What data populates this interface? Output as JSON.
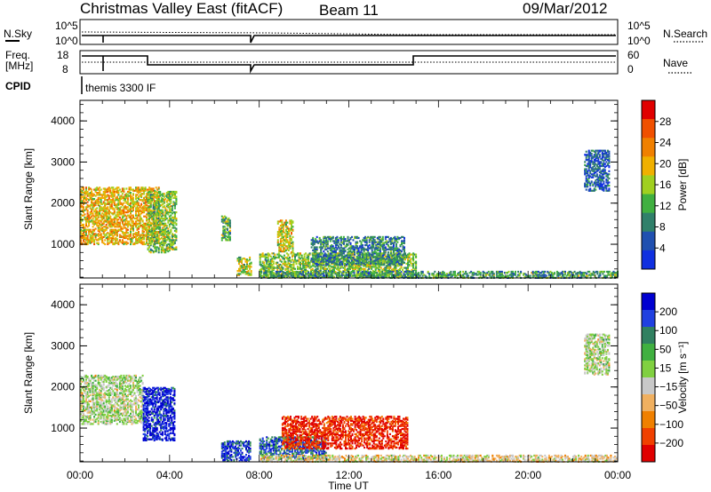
{
  "header": {
    "station": "Christmas Valley East (fitACF)",
    "beam": "Beam 11",
    "date": "09/Mar/2012"
  },
  "summary": {
    "nsky_label": "N.Sky",
    "nsky_ticks": [
      "10^5",
      "10^0"
    ],
    "nsearch_label": "N.Search",
    "nsearch_ticks": [
      "10^5",
      "10^0"
    ],
    "freq_label": "Freq.",
    "freq_unit": "[MHz]",
    "freq_ticks": [
      "18",
      "8"
    ],
    "nave_label": "Nave",
    "nave_ticks": [
      "60",
      "0"
    ],
    "cpid_label": "CPID",
    "cpid_value": "themis 3300 IF"
  },
  "chart_data": [
    {
      "type": "heatmap",
      "panel": "power",
      "ylabel": "Slant Range [km]",
      "xlabel": "Time UT",
      "xlim": [
        0,
        24
      ],
      "ylim": [
        180,
        4500
      ],
      "x_ticks": [
        "00:00",
        "04:00",
        "08:00",
        "12:00",
        "16:00",
        "20:00",
        "00:00"
      ],
      "y_ticks": [
        1000,
        2000,
        3000,
        4000
      ],
      "colorbar": {
        "label": "Power [dB]",
        "ticks": [
          4,
          8,
          12,
          16,
          20,
          24,
          28
        ],
        "colors": [
          "#1030e0",
          "#2050b0",
          "#30806a",
          "#40b040",
          "#a0d020",
          "#f0b000",
          "#f08000",
          "#f05000",
          "#e00000"
        ]
      },
      "echo_regions": [
        {
          "t0": 0.0,
          "t1": 3.5,
          "r0": 1000,
          "r1": 2400,
          "db": 20
        },
        {
          "t0": 3.0,
          "t1": 4.3,
          "r0": 800,
          "r1": 2300,
          "db": 14
        },
        {
          "t0": 6.3,
          "t1": 6.7,
          "r0": 1100,
          "r1": 1700,
          "db": 12
        },
        {
          "t0": 7.0,
          "t1": 7.6,
          "r0": 250,
          "r1": 700,
          "db": 16
        },
        {
          "t0": 8.0,
          "t1": 15.0,
          "r0": 200,
          "r1": 800,
          "db": 14
        },
        {
          "t0": 8.8,
          "t1": 9.5,
          "r0": 800,
          "r1": 1600,
          "db": 18
        },
        {
          "t0": 10.3,
          "t1": 14.5,
          "r0": 500,
          "r1": 1200,
          "db": 8
        },
        {
          "t0": 8.0,
          "t1": 24.0,
          "r0": 180,
          "r1": 350,
          "db": 10
        },
        {
          "t0": 22.5,
          "t1": 23.6,
          "r0": 2300,
          "r1": 3300,
          "db": 4
        }
      ]
    },
    {
      "type": "heatmap",
      "panel": "velocity",
      "ylabel": "Slant Range [km]",
      "xlabel": "Time UT",
      "xlim": [
        0,
        24
      ],
      "ylim": [
        180,
        4500
      ],
      "x_ticks": [
        "00:00",
        "04:00",
        "08:00",
        "12:00",
        "16:00",
        "20:00",
        "00:00"
      ],
      "y_ticks": [
        1000,
        2000,
        3000,
        4000
      ],
      "colorbar": {
        "label": "Velocity [m s⁻¹]",
        "ticks": [
          "200",
          "100",
          "50",
          "15",
          "−15",
          "−50",
          "−100",
          "−200"
        ],
        "colors": [
          "#0000d0",
          "#2040e0",
          "#308060",
          "#40b040",
          "#80d040",
          "#c8c8c8",
          "#f0b060",
          "#f08000",
          "#f04000",
          "#e00000"
        ]
      },
      "echo_regions": [
        {
          "t0": 0.0,
          "t1": 2.8,
          "r0": 1100,
          "r1": 2300,
          "v": 0
        },
        {
          "t0": 2.8,
          "t1": 4.2,
          "r0": 700,
          "r1": 2000,
          "v": 200
        },
        {
          "t0": 6.3,
          "t1": 7.6,
          "r0": 200,
          "r1": 700,
          "v": 180
        },
        {
          "t0": 8.0,
          "t1": 11.0,
          "r0": 250,
          "r1": 800,
          "v": 150
        },
        {
          "t0": 9.0,
          "t1": 14.6,
          "r0": 500,
          "r1": 1300,
          "v": -200
        },
        {
          "t0": 8.0,
          "t1": 24.0,
          "r0": 180,
          "r1": 350,
          "v": -40
        },
        {
          "t0": 22.5,
          "t1": 23.6,
          "r0": 2300,
          "r1": 3300,
          "v": 0
        }
      ]
    }
  ]
}
